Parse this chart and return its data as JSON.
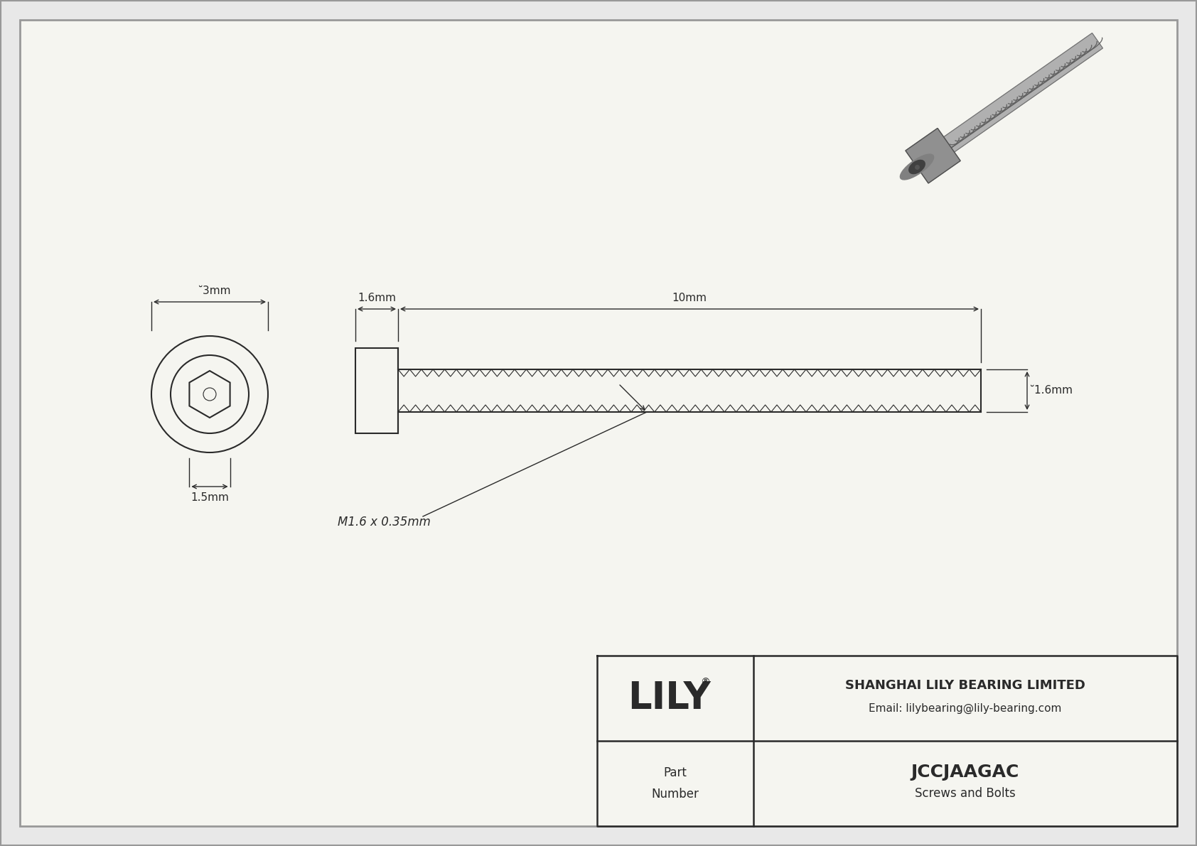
{
  "bg_color": "#e8e8e8",
  "inner_bg": "#f5f5f0",
  "line_color": "#2a2a2a",
  "title_company": "SHANGHAI LILY BEARING LIMITED",
  "title_email": "Email: lilybearing@lily-bearing.com",
  "part_number": "JCCJAAGAC",
  "part_type": "Screws and Bolts",
  "part_label": "Part\nNumber",
  "lily_logo": "LILY",
  "dim_diameter": "̆3mm",
  "dim_head_len": "1.6mm",
  "dim_thread_len": "10mm",
  "dim_thread_dia": "̆1.6mm",
  "dim_hex_size": "1.5mm",
  "dim_thread_label": "M1.6 x 0.35mm"
}
